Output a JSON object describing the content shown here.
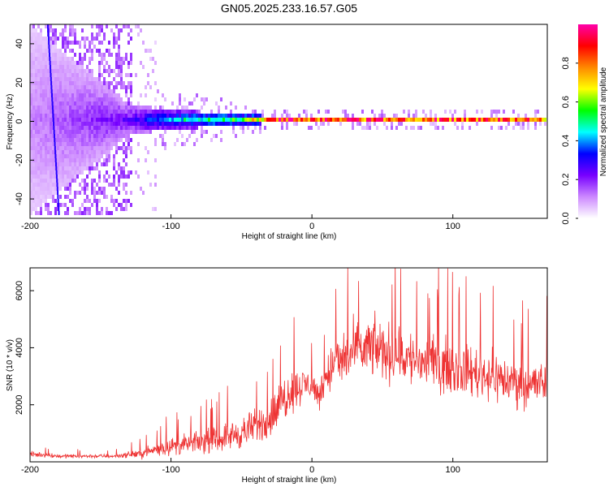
{
  "title": "GN05.2025.233.16.57.G05",
  "chart_data": [
    {
      "type": "heatmap",
      "xlabel": "Height of straight line (km)",
      "ylabel": "Frequency (Hz)",
      "xlim": [
        -200,
        167
      ],
      "ylim": [
        -50,
        50
      ],
      "x_ticks": [
        "-200",
        "-100",
        "0",
        "100"
      ],
      "y_ticks": [
        "-40",
        "-20",
        "0",
        "20",
        "40"
      ],
      "grid": false,
      "colorbar": {
        "label": "Normalized spectral amplitude",
        "range": [
          0,
          1
        ],
        "ticks": [
          "0.0",
          "0.2",
          "0.4",
          "0.6",
          "0.8"
        ],
        "colors": [
          "#ffffff",
          "#cc88ff",
          "#7700ff",
          "#0000ff",
          "#00ffff",
          "#00ff00",
          "#ffff00",
          "#ff8800",
          "#ff0000",
          "#ff00aa"
        ]
      },
      "description_points": [
        {
          "x": -200,
          "band_half_width_hz": 50,
          "amplitude": 0.12
        },
        {
          "x": -130,
          "band_half_width_hz": 8,
          "amplitude": 0.25
        },
        {
          "x": -100,
          "band_half_width_hz": 5,
          "amplitude": 0.45
        },
        {
          "x": -50,
          "band_half_width_hz": 3,
          "amplitude": 0.6
        },
        {
          "x": -25,
          "band_half_width_hz": 1.5,
          "amplitude": 0.95
        },
        {
          "x": 0,
          "band_half_width_hz": 2,
          "amplitude": 0.9
        },
        {
          "x": 50,
          "band_half_width_hz": 2,
          "amplitude": 0.9
        },
        {
          "x": 100,
          "band_half_width_hz": 2,
          "amplitude": 0.9
        },
        {
          "x": 167,
          "band_half_width_hz": 2,
          "amplitude": 0.85
        }
      ]
    },
    {
      "type": "line",
      "xlabel": "Height of straight line (km)",
      "ylabel": "SNR (10 * v/v)",
      "xlim": [
        -200,
        167
      ],
      "ylim": [
        0,
        6800
      ],
      "x_ticks": [
        "-200",
        "-100",
        "0",
        "100"
      ],
      "y_ticks": [
        "2000",
        "4000",
        "6000"
      ],
      "grid": false,
      "series": [
        {
          "color": "#ee3333",
          "envelope": {
            "x": [
              -200,
              -190,
              -180,
              -170,
              -160,
              -150,
              -140,
              -130,
              -120,
              -110,
              -100,
              -90,
              -80,
              -70,
              -60,
              -50,
              -40,
              -30,
              -25,
              -20,
              -17,
              -15,
              -10,
              -5,
              0,
              5,
              10,
              15,
              20,
              25,
              30,
              35,
              40,
              45,
              50,
              55,
              60,
              65,
              70,
              80,
              90,
              100,
              110,
              120,
              130,
              140,
              150,
              160,
              167
            ],
            "mean": [
              250,
              250,
              200,
              200,
              200,
              200,
              200,
              250,
              300,
              450,
              550,
              600,
              700,
              750,
              900,
              1000,
              1250,
              1500,
              1800,
              2200,
              2500,
              2500,
              2600,
              2700,
              2700,
              2300,
              3000,
              3400,
              3500,
              3700,
              3800,
              3900,
              4000,
              4000,
              3900,
              3800,
              3800,
              3700,
              3600,
              3500,
              3400,
              3300,
              3200,
              3100,
              3000,
              2800,
              2800,
              2700,
              2800
            ],
            "spread": [
              150,
              150,
              100,
              100,
              100,
              100,
              100,
              150,
              250,
              350,
              450,
              500,
              550,
              600,
              700,
              800,
              900,
              1000,
              1100,
              1300,
              1300,
              1100,
              1000,
              900,
              700,
              700,
              1100,
              1300,
              1400,
              1400,
              1500,
              1500,
              1500,
              1500,
              1500,
              1500,
              1500,
              1500,
              1500,
              1400,
              1400,
              1300,
              1300,
              1300,
              1300,
              1200,
              1200,
              1200,
              1200
            ]
          }
        }
      ]
    }
  ]
}
